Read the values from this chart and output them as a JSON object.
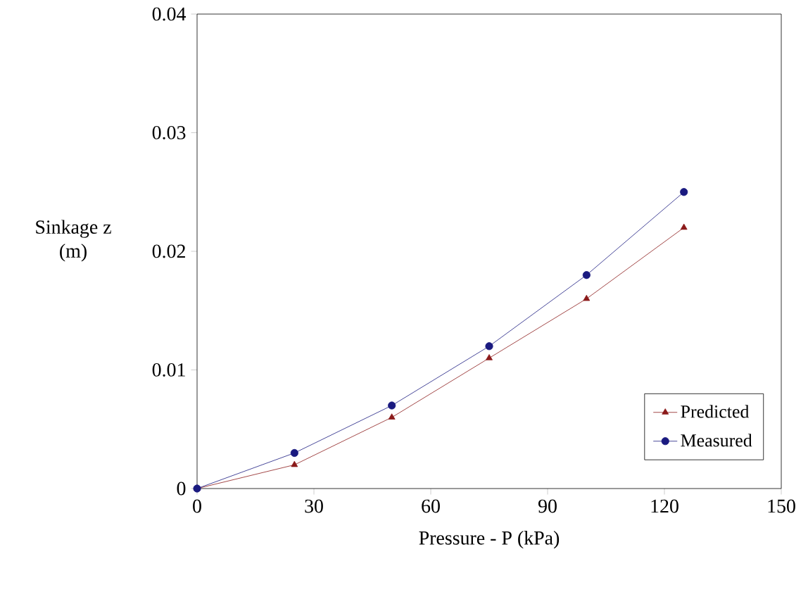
{
  "chart_data": {
    "type": "line",
    "xlabel": "Pressure - P (kPa)",
    "ylabel": "Sinkage z (m)",
    "x": [
      0,
      25,
      50,
      75,
      100,
      125
    ],
    "series": [
      {
        "name": "Predicted",
        "color": "#8b1a1a",
        "marker": "triangle",
        "values": [
          0,
          0.002,
          0.006,
          0.011,
          0.016,
          0.022
        ]
      },
      {
        "name": "Measured",
        "color": "#1a1a80",
        "marker": "circle",
        "values": [
          0,
          0.003,
          0.007,
          0.012,
          0.018,
          0.025
        ]
      }
    ],
    "xlim": [
      0,
      150
    ],
    "ylim": [
      0,
      0.04
    ],
    "xticks": [
      0,
      30,
      60,
      90,
      120,
      150
    ],
    "yticks": [
      0,
      0.01,
      0.02,
      0.03,
      0.04
    ],
    "grid": false,
    "legend": "bottom right",
    "line_style": "solid"
  }
}
